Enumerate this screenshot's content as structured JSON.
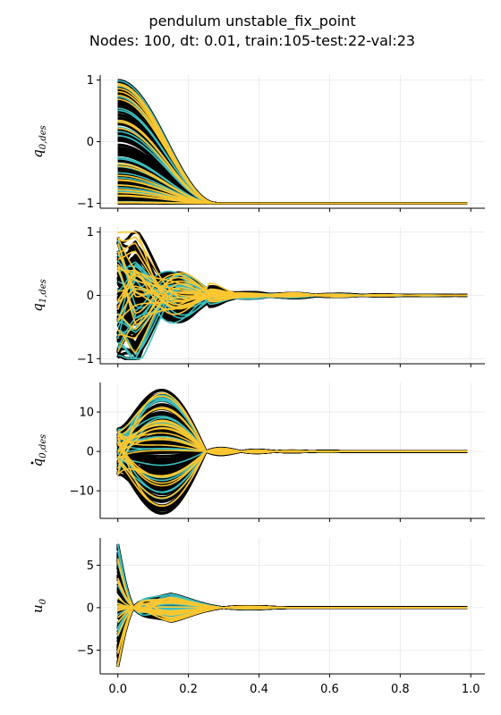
{
  "figure": {
    "title_line1": "pendulum unstable_fix_point",
    "title_line2": "Nodes: 100, dt: 0.01, train:105-test:22-val:23"
  },
  "colors": {
    "train": "#000000",
    "test": "#3bbfbf",
    "val": "#fcc630",
    "grid": "#e9e9e9"
  },
  "chart_data": [
    {
      "type": "line",
      "ylabel_main": "q",
      "ylabel_sub": "0,des",
      "ylabel_dot": false,
      "xlim": [
        -0.05,
        1.04
      ],
      "ylim": [
        -1.08,
        1.08
      ],
      "xticks": [
        0.0,
        0.2,
        0.4,
        0.6,
        0.8,
        1.0
      ],
      "yticks": [
        -1,
        0,
        1
      ],
      "ytick_labels": [
        "−1",
        "0",
        "1"
      ],
      "x_tick_labels_shown": false,
      "grid": true,
      "x_range": [
        0.0,
        0.99
      ],
      "initial_range": [
        -1.0,
        1.0
      ],
      "final_value": -1.0,
      "settle_time": 0.28
    },
    {
      "type": "line",
      "ylabel_main": "q",
      "ylabel_sub": "1,des",
      "ylabel_dot": false,
      "xlim": [
        -0.05,
        1.04
      ],
      "ylim": [
        -1.08,
        1.08
      ],
      "xticks": [
        0.0,
        0.2,
        0.4,
        0.6,
        0.8,
        1.0
      ],
      "yticks": [
        -1,
        0,
        1
      ],
      "ytick_labels": [
        "−1",
        "0",
        "1"
      ],
      "x_tick_labels_shown": false,
      "grid": true,
      "x_range": [
        0.0,
        0.99
      ],
      "initial_range": [
        -1.0,
        1.0
      ],
      "final_value": 0.0,
      "settle_time": 0.6
    },
    {
      "type": "line",
      "ylabel_main": "q",
      "ylabel_sub": "0,des",
      "ylabel_dot": true,
      "xlim": [
        -0.05,
        1.04
      ],
      "ylim": [
        -17,
        17.5
      ],
      "xticks": [
        0.0,
        0.2,
        0.4,
        0.6,
        0.8,
        1.0
      ],
      "yticks": [
        -10,
        0,
        10
      ],
      "ytick_labels": [
        "−10",
        "0",
        "10"
      ],
      "x_tick_labels_shown": false,
      "grid": true,
      "x_range": [
        0.0,
        0.99
      ],
      "initial_range": [
        -6.0,
        6.0
      ],
      "peak_range": [
        -16.0,
        15.5
      ],
      "final_value": 0.0,
      "settle_time": 0.6
    },
    {
      "type": "line",
      "ylabel_main": "u",
      "ylabel_sub": "0",
      "ylabel_dot": false,
      "xlim": [
        -0.05,
        1.04
      ],
      "ylim": [
        -7.8,
        8.2
      ],
      "xticks": [
        0.0,
        0.2,
        0.4,
        0.6,
        0.8,
        1.0
      ],
      "xtick_labels": [
        "0.0",
        "0.2",
        "0.4",
        "0.6",
        "0.8",
        "1.0"
      ],
      "yticks": [
        -5,
        0,
        5
      ],
      "ytick_labels": [
        "−5",
        "0",
        "5"
      ],
      "x_tick_labels_shown": true,
      "grid": true,
      "x_range": [
        0.0,
        0.99
      ],
      "initial_range": [
        -7.0,
        7.5
      ],
      "final_value": 0.0,
      "settle_time": 0.42
    }
  ]
}
